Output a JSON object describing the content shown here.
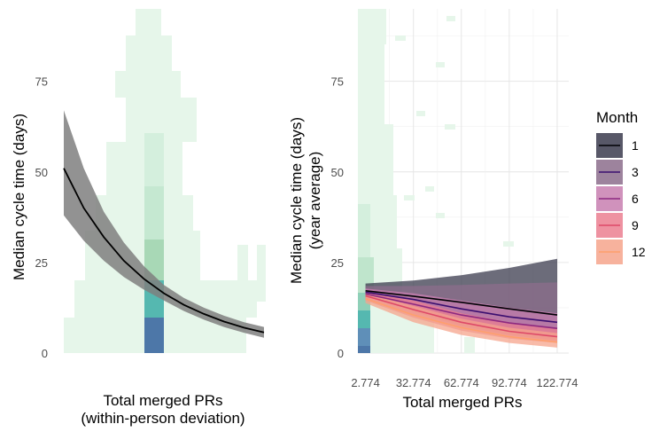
{
  "chart_data": [
    {
      "type": "line",
      "title": "",
      "xlabel": "Total merged PRs\n(within-person deviation)",
      "ylabel": "Median cycle time (days)",
      "yticks": [
        0,
        25,
        50,
        75
      ],
      "ylim": [
        0,
        95
      ],
      "xlim": [
        0,
        1
      ],
      "grid": false,
      "heatmap_background": true,
      "series": [
        {
          "x": [
            0,
            0.1,
            0.2,
            0.3,
            0.4,
            0.5,
            0.6,
            0.7,
            0.8,
            0.9,
            1.0
          ],
          "y": [
            51,
            40,
            32,
            25.5,
            20.5,
            16.5,
            13.3,
            10.8,
            8.7,
            7.0,
            5.7
          ],
          "lower": [
            38,
            31,
            25.5,
            21,
            17.5,
            14.5,
            11.6,
            9.2,
            7.2,
            5.6,
            4.2
          ],
          "upper": [
            67,
            51,
            39,
            30.5,
            24,
            18.8,
            15.2,
            12.5,
            10.3,
            8.5,
            7.2
          ],
          "color": "#000000",
          "ribbon_color": "#7f7f7f"
        }
      ]
    },
    {
      "type": "line",
      "title": "",
      "xlabel": "Total merged PRs",
      "ylabel": "Median cycle time (days)\n(year average)",
      "xticks": [
        2.774,
        32.774,
        62.774,
        92.774,
        122.774
      ],
      "yticks": [
        0,
        25,
        50,
        75
      ],
      "xlim": [
        -2,
        130
      ],
      "ylim": [
        0,
        95
      ],
      "grid": true,
      "heatmap_background": true,
      "legend": {
        "title": "Month",
        "position": "right"
      },
      "series": [
        {
          "name": "1",
          "color": "#000004",
          "fill": "#3b3b4e",
          "x": [
            2.774,
            32.774,
            62.774,
            92.774,
            122.774
          ],
          "y": [
            17.2,
            15.7,
            14.0,
            12.2,
            10.5
          ],
          "lower": [
            15.8,
            11.5,
            7.5,
            5.0,
            3.5
          ],
          "upper": [
            19.2,
            20.0,
            21.5,
            23.5,
            26.0
          ]
        },
        {
          "name": "3",
          "color": "#3b0f70",
          "fill": "#8c6d8c",
          "x": [
            2.774,
            32.774,
            62.774,
            92.774,
            122.774
          ],
          "y": [
            16.8,
            14.8,
            12.2,
            10.0,
            8.5
          ],
          "lower": [
            15.5,
            11.5,
            8.0,
            5.0,
            3.5
          ],
          "upper": [
            18.5,
            18.5,
            18.8,
            19.2,
            19.5
          ]
        },
        {
          "name": "6",
          "color": "#8c2981",
          "fill": "#c87fb0",
          "x": [
            2.774,
            32.774,
            62.774,
            92.774,
            122.774
          ],
          "y": [
            16.3,
            13.5,
            10.5,
            8.3,
            6.8
          ],
          "lower": [
            15.0,
            10.5,
            7.0,
            4.8,
            3.3
          ],
          "upper": [
            17.8,
            16.5,
            14.5,
            12.5,
            11.0
          ]
        },
        {
          "name": "9",
          "color": "#de4968",
          "fill": "#eb7f90",
          "x": [
            2.774,
            32.774,
            62.774,
            92.774,
            122.774
          ],
          "y": [
            15.8,
            12.0,
            8.5,
            6.0,
            4.5
          ],
          "lower": [
            14.5,
            9.8,
            6.2,
            4.0,
            2.8
          ],
          "upper": [
            17.0,
            14.5,
            11.0,
            8.5,
            7.0
          ]
        },
        {
          "name": "12",
          "color": "#fe9f6d",
          "fill": "#f6a48c",
          "x": [
            2.774,
            32.774,
            62.774,
            92.774,
            122.774
          ],
          "y": [
            15.0,
            10.5,
            7.0,
            4.5,
            3.0
          ],
          "lower": [
            13.8,
            8.5,
            5.0,
            2.8,
            1.5
          ],
          "upper": [
            16.5,
            13.0,
            9.5,
            7.0,
            5.5
          ]
        }
      ]
    }
  ]
}
